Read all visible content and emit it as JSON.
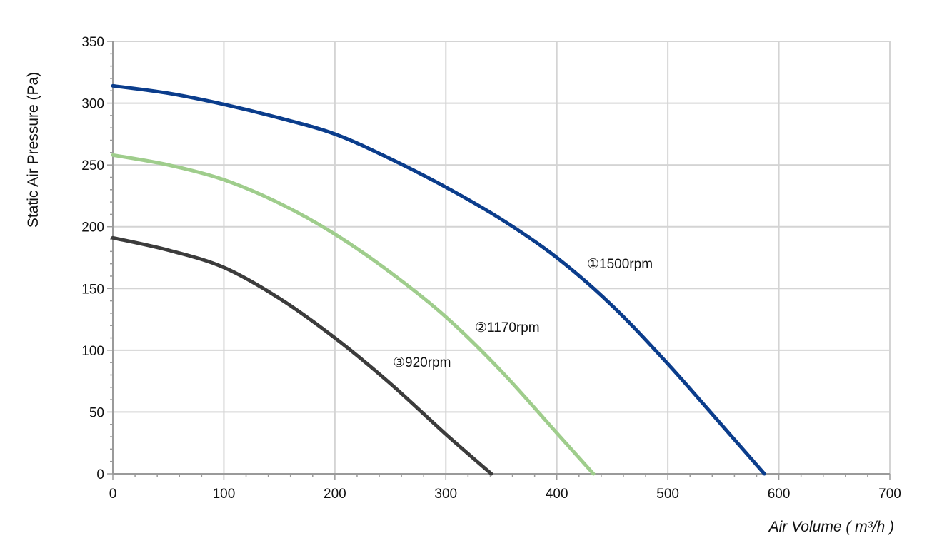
{
  "chart_data": {
    "type": "line",
    "title": "",
    "xlabel": "Air Volume ( m³/h )",
    "ylabel": "Static Air Pressure  (Pa)",
    "xlim": [
      0,
      700
    ],
    "ylim": [
      0,
      350
    ],
    "x_ticks": [
      0,
      100,
      200,
      300,
      400,
      500,
      600,
      700
    ],
    "y_ticks": [
      0,
      50,
      100,
      150,
      200,
      250,
      300,
      350
    ],
    "grid": true,
    "legend": "none",
    "series": [
      {
        "name": "①1500rpm",
        "color": "#0b3d8c",
        "x": [
          0,
          50,
          100,
          150,
          200,
          250,
          300,
          350,
          400,
          450,
          500,
          550,
          587
        ],
        "y": [
          314,
          308,
          299,
          288,
          275,
          255,
          232,
          206,
          175,
          136,
          89,
          38,
          0
        ]
      },
      {
        "name": "②1170rpm",
        "color": "#9fcd8c",
        "x": [
          0,
          50,
          100,
          150,
          200,
          250,
          300,
          350,
          400,
          433
        ],
        "y": [
          258,
          250,
          238,
          219,
          194,
          163,
          127,
          83,
          33,
          0
        ]
      },
      {
        "name": "③920rpm",
        "color": "#3c3c3c",
        "x": [
          0,
          50,
          100,
          150,
          200,
          250,
          300,
          341
        ],
        "y": [
          191,
          181,
          167,
          142,
          110,
          73,
          32,
          0
        ]
      }
    ]
  }
}
